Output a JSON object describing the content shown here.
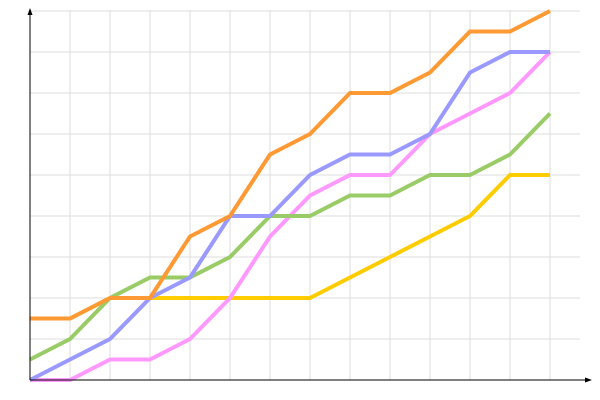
{
  "chart_data": {
    "type": "line",
    "title": "",
    "xlabel": "",
    "ylabel": "",
    "x": [
      0,
      1,
      2,
      3,
      4,
      5,
      6,
      7,
      8,
      9,
      10,
      11,
      12,
      13
    ],
    "xlim": [
      0,
      13.9
    ],
    "ylim": [
      0,
      9.1
    ],
    "grid": true,
    "legend": "none",
    "series": [
      {
        "color": "#ffcc00",
        "values": [
          1.5,
          1.5,
          2,
          2,
          2,
          2,
          2,
          2,
          2.5,
          3,
          3.5,
          4,
          5,
          5
        ]
      },
      {
        "color": "#ff99ff",
        "values": [
          0,
          0,
          0.5,
          0.5,
          1,
          2,
          3.5,
          4.5,
          5,
          5,
          6,
          6.5,
          7,
          8
        ]
      },
      {
        "color": "#99cc66",
        "values": [
          0.5,
          1,
          2,
          2.5,
          2.5,
          3,
          4,
          4,
          4.5,
          4.5,
          5,
          5,
          5.5,
          6.5
        ]
      },
      {
        "color": "#9999ff",
        "values": [
          0,
          0.5,
          1,
          2,
          2.5,
          4,
          4,
          5,
          5.5,
          5.5,
          6,
          7.5,
          8,
          8
        ]
      },
      {
        "color": "#ff9933",
        "values": [
          1.5,
          1.5,
          2,
          2,
          3.5,
          4,
          5.5,
          6,
          7,
          7,
          7.5,
          8.5,
          8.5,
          9
        ]
      }
    ]
  }
}
